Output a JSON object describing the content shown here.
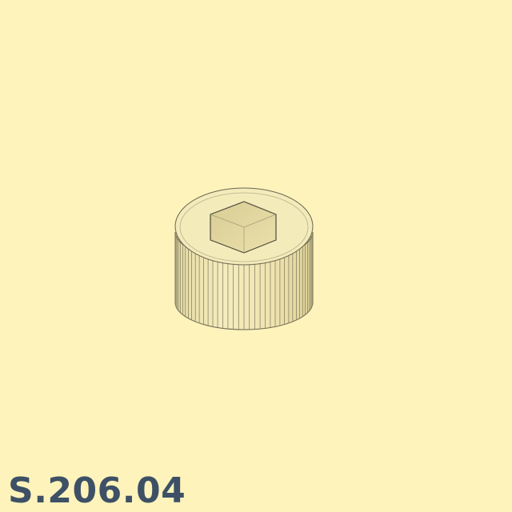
{
  "part": {
    "code": "S.206.04",
    "model": "knurled-thumb-nut-icon"
  },
  "colors": {
    "background": "#fdf3bb",
    "part_body": "#f2e8b4",
    "part_edge": "#6b6650",
    "label": "#3d5066"
  }
}
